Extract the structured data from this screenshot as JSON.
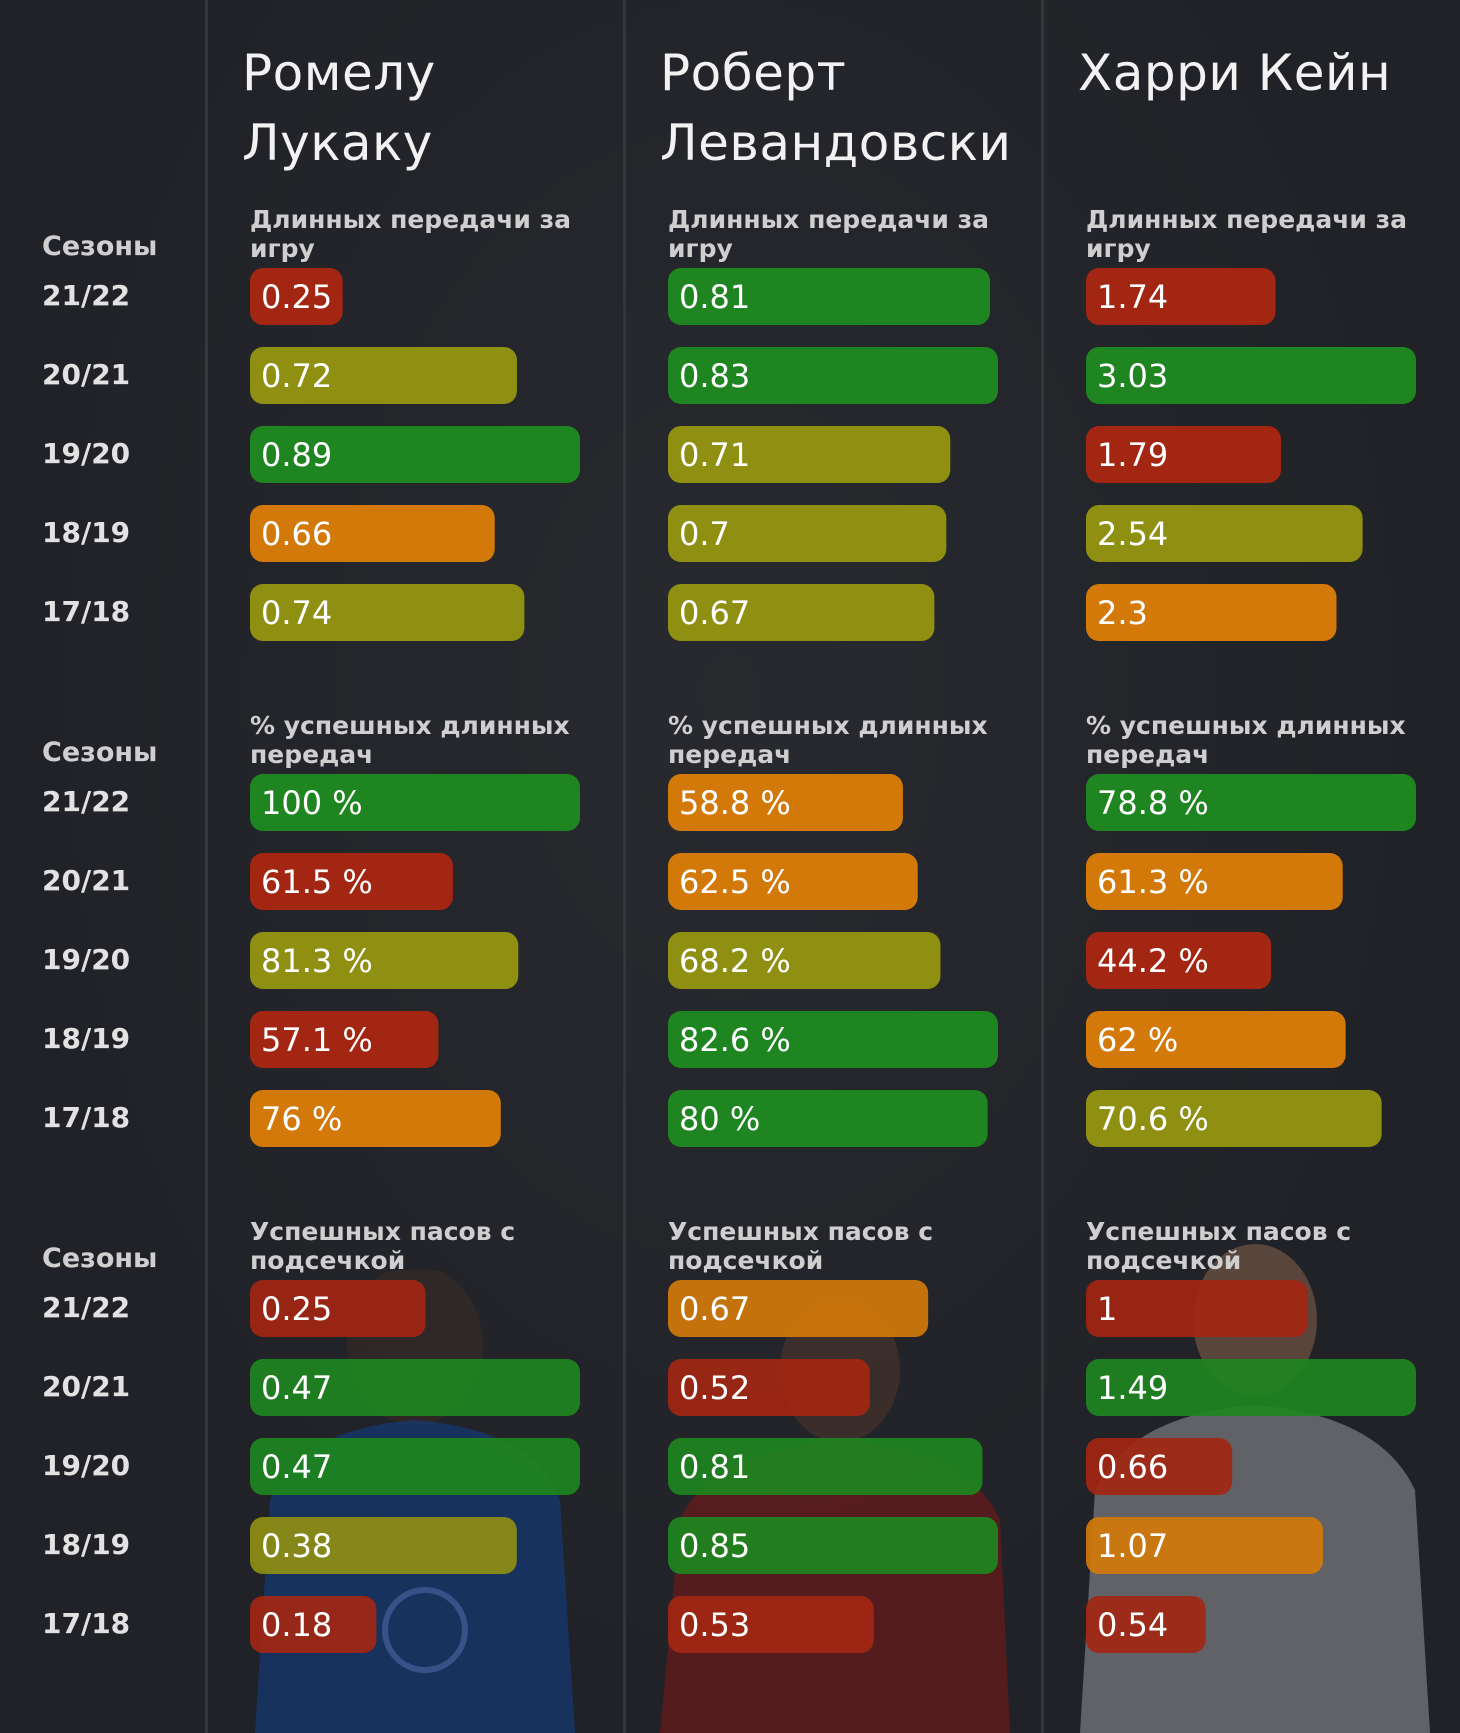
{
  "chart_data": {
    "type": "bar",
    "seasons_header": "Сезоны",
    "seasons": [
      "21/22",
      "20/21",
      "19/20",
      "18/19",
      "17/18"
    ],
    "colors": {
      "green": "#1e8520",
      "olive": "#8f8f12",
      "orange": "#d3790a",
      "red": "#a32612"
    },
    "players": [
      {
        "name": "Ромелу Лукаку",
        "metrics": [
          {
            "label": "Длинных передачи за игру",
            "values": [
              0.25,
              0.72,
              0.89,
              0.66,
              0.74
            ],
            "labels": [
              "0.25",
              "0.72",
              "0.89",
              "0.66",
              "0.74"
            ],
            "colors": [
              "red",
              "olive",
              "green",
              "orange",
              "olive"
            ]
          },
          {
            "label": "% успешных длинных передач",
            "values": [
              100,
              61.5,
              81.3,
              57.1,
              76
            ],
            "labels": [
              "100 %",
              "61.5 %",
              "81.3 %",
              "57.1 %",
              "76 %"
            ],
            "colors": [
              "green",
              "red",
              "olive",
              "red",
              "orange"
            ]
          },
          {
            "label": "Успешных пасов с подсечкой",
            "values": [
              0.25,
              0.47,
              0.47,
              0.38,
              0.18
            ],
            "labels": [
              "0.25",
              "0.47",
              "0.47",
              "0.38",
              "0.18"
            ],
            "colors": [
              "red",
              "green",
              "green",
              "olive",
              "red"
            ]
          }
        ]
      },
      {
        "name": "Роберт Левандовски",
        "metrics": [
          {
            "label": "Длинных передачи за игру",
            "values": [
              0.81,
              0.83,
              0.71,
              0.7,
              0.67
            ],
            "labels": [
              "0.81",
              "0.83",
              "0.71",
              "0.7",
              "0.67"
            ],
            "colors": [
              "green",
              "green",
              "olive",
              "olive",
              "olive"
            ]
          },
          {
            "label": "% успешных длинных передач",
            "values": [
              58.8,
              62.5,
              68.2,
              82.6,
              80
            ],
            "labels": [
              "58.8 %",
              "62.5 %",
              "68.2 %",
              "82.6 %",
              "80 %"
            ],
            "colors": [
              "orange",
              "orange",
              "olive",
              "green",
              "green"
            ]
          },
          {
            "label": "Успешных пасов с подсечкой",
            "values": [
              0.67,
              0.52,
              0.81,
              0.85,
              0.53
            ],
            "labels": [
              "0.67",
              "0.52",
              "0.81",
              "0.85",
              "0.53"
            ],
            "colors": [
              "orange",
              "red",
              "green",
              "green",
              "red"
            ]
          }
        ]
      },
      {
        "name": "Харри Кейн",
        "metrics": [
          {
            "label": "Длинных передачи за игру",
            "values": [
              1.74,
              3.03,
              1.79,
              2.54,
              2.3
            ],
            "labels": [
              "1.74",
              "3.03",
              "1.79",
              "2.54",
              "2.3"
            ],
            "colors": [
              "red",
              "green",
              "red",
              "olive",
              "orange"
            ]
          },
          {
            "label": "% успешных длинных передач",
            "values": [
              78.8,
              61.3,
              44.2,
              62,
              70.6
            ],
            "labels": [
              "78.8 %",
              "61.3 %",
              "44.2 %",
              "62 %",
              "70.6 %"
            ],
            "colors": [
              "green",
              "orange",
              "red",
              "orange",
              "olive"
            ]
          },
          {
            "label": "Успешных пасов с подсечкой",
            "values": [
              1,
              1.49,
              0.66,
              1.07,
              0.54
            ],
            "labels": [
              "1",
              "1.49",
              "0.66",
              "1.07",
              "0.54"
            ],
            "colors": [
              "red",
              "green",
              "red",
              "orange",
              "red"
            ]
          }
        ]
      }
    ]
  }
}
